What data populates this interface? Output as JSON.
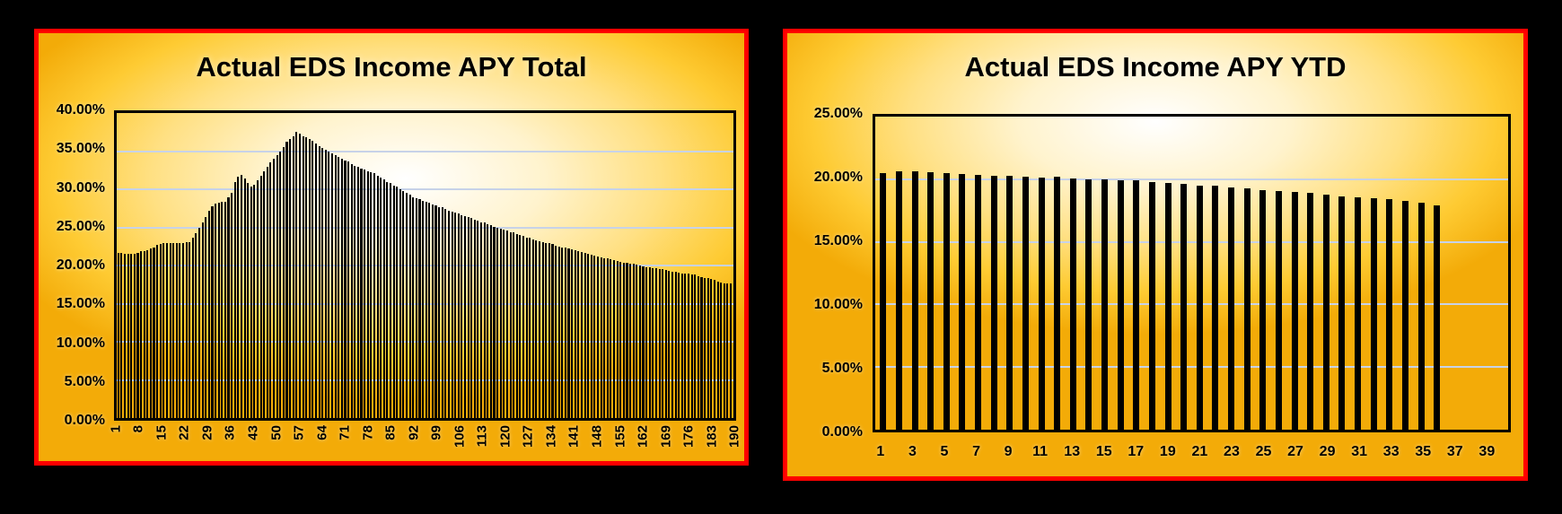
{
  "colors": {
    "page_background": "#000000",
    "panel_border_red": "#fe0000",
    "panel_gold": "#fecb33",
    "panel_gold_deep": "#f3ab08",
    "glow_white": "#ffffff",
    "gridline": "#c7d2e8",
    "bar": "#000000",
    "text": "#000000"
  },
  "chart_data": [
    {
      "type": "bar",
      "title": "Actual EDS Income APY Total",
      "xlabel": "",
      "ylabel": "",
      "legend": "none",
      "grid": "on",
      "y_axis": {
        "min": 0,
        "max": 40,
        "step": 5
      },
      "y_tick_labels": [
        "40.00%",
        "35.00%",
        "30.00%",
        "25.00%",
        "20.00%",
        "15.00%",
        "10.00%",
        "5.00%",
        "0.00%"
      ],
      "x_tick_labels": [
        "1",
        "8",
        "15",
        "22",
        "29",
        "36",
        "43",
        "50",
        "57",
        "64",
        "71",
        "78",
        "85",
        "92",
        "99",
        "106",
        "113",
        "120",
        "127",
        "134",
        "141",
        "148",
        "155",
        "162",
        "169",
        "176",
        "183",
        "190"
      ],
      "x_tick_rotated": true,
      "categories_count": 190,
      "values": [
        21.6,
        21.6,
        21.5,
        21.5,
        21.5,
        21.5,
        21.6,
        21.9,
        21.9,
        22.0,
        22.2,
        22.4,
        22.7,
        22.8,
        22.9,
        22.9,
        23.0,
        23.0,
        23.0,
        23.0,
        23.0,
        23.1,
        23.1,
        23.6,
        24.2,
        25.0,
        25.7,
        26.4,
        27.2,
        27.8,
        28.1,
        28.2,
        28.3,
        28.4,
        28.9,
        29.5,
        31.0,
        31.7,
        31.9,
        31.4,
        30.8,
        30.4,
        30.6,
        31.2,
        31.8,
        32.3,
        32.9,
        33.5,
        34.0,
        34.5,
        35.0,
        35.5,
        36.2,
        36.6,
        37.0,
        37.5,
        37.3,
        37.0,
        36.8,
        36.6,
        36.3,
        36.0,
        35.7,
        35.4,
        35.2,
        34.9,
        34.7,
        34.5,
        34.2,
        34.0,
        33.8,
        33.6,
        33.3,
        33.1,
        32.9,
        32.7,
        32.6,
        32.4,
        32.2,
        32.1,
        31.8,
        31.5,
        31.3,
        31.0,
        30.8,
        30.5,
        30.3,
        30.0,
        29.8,
        29.5,
        29.3,
        29.0,
        28.8,
        28.7,
        28.5,
        28.3,
        28.2,
        28.0,
        27.9,
        27.7,
        27.6,
        27.4,
        27.2,
        27.1,
        26.9,
        26.8,
        26.6,
        26.5,
        26.3,
        26.2,
        26.0,
        25.9,
        25.7,
        25.6,
        25.4,
        25.3,
        25.1,
        25.0,
        24.8,
        24.7,
        24.6,
        24.4,
        24.3,
        24.1,
        24.0,
        23.9,
        23.7,
        23.6,
        23.4,
        23.3,
        23.2,
        23.1,
        23.0,
        22.9,
        22.8,
        22.6,
        22.5,
        22.4,
        22.3,
        22.2,
        22.1,
        22.0,
        21.9,
        21.8,
        21.6,
        21.5,
        21.4,
        21.3,
        21.2,
        21.1,
        21.0,
        20.9,
        20.8,
        20.7,
        20.6,
        20.5,
        20.4,
        20.3,
        20.2,
        20.2,
        20.1,
        20.0,
        19.9,
        19.8,
        19.8,
        19.7,
        19.6,
        19.5,
        19.5,
        19.4,
        19.3,
        19.2,
        19.2,
        19.1,
        19.0,
        18.9,
        18.9,
        18.8,
        18.8,
        18.6,
        18.5,
        18.4,
        18.3,
        18.2,
        18.1,
        17.9,
        17.8,
        17.7,
        17.7,
        17.6
      ]
    },
    {
      "type": "bar",
      "title": "Actual EDS Income APY YTD",
      "xlabel": "",
      "ylabel": "",
      "legend": "none",
      "grid": "on",
      "y_axis": {
        "min": 0,
        "max": 25,
        "step": 5
      },
      "y_tick_labels": [
        "25.00%",
        "20.00%",
        "15.00%",
        "10.00%",
        "5.00%",
        "0.00%"
      ],
      "x_tick_labels": [
        "1",
        "3",
        "5",
        "7",
        "9",
        "11",
        "13",
        "15",
        "17",
        "19",
        "21",
        "23",
        "25",
        "27",
        "29",
        "31",
        "33",
        "35",
        "37",
        "39"
      ],
      "x_tick_rotated": false,
      "categories_count": 40,
      "values": [
        20.5,
        20.65,
        20.6,
        20.55,
        20.5,
        20.4,
        20.35,
        20.3,
        20.3,
        20.2,
        20.15,
        20.2,
        20.05,
        20.0,
        20.0,
        19.95,
        19.9,
        19.8,
        19.7,
        19.6,
        19.5,
        19.45,
        19.35,
        19.25,
        19.15,
        19.05,
        18.95,
        18.9,
        18.8,
        18.65,
        18.55,
        18.5,
        18.4,
        18.25,
        18.1,
        17.9
      ]
    }
  ]
}
